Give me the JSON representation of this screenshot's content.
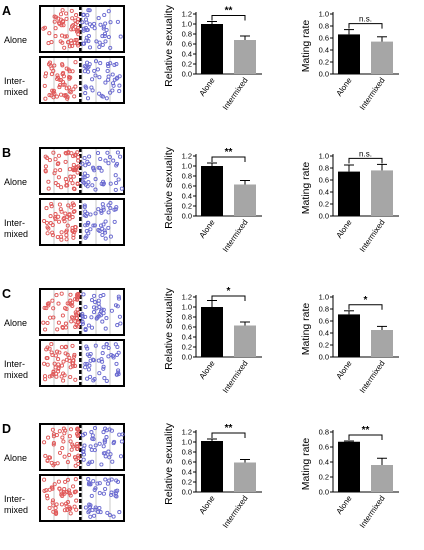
{
  "panel_texts": {
    "row_label_alone": "Alone",
    "row_label_intermixed_1": "Inter-",
    "row_label_intermixed_2": "mixed"
  },
  "colors": {
    "alone_bar": "#000000",
    "intermixed_bar": "#a6a6a6",
    "female_dot": "#e05a5a",
    "male_dot": "#6a6ad0"
  },
  "panels": [
    {
      "letter": "A"
    },
    {
      "letter": "B"
    },
    {
      "letter": "C"
    },
    {
      "letter": "D"
    }
  ],
  "chart_data": [
    {
      "panel": "A",
      "type": "bar",
      "categories": [
        "Alone",
        "Intermixed"
      ],
      "values": [
        1.0,
        0.68
      ],
      "errors": [
        0.05,
        0.08
      ],
      "ylabel": "Relative sexuality",
      "ylim": [
        0,
        1.2
      ],
      "yticks": [
        "0.0",
        "0.2",
        "0.4",
        "0.6",
        "0.8",
        "1.0",
        "1.2"
      ],
      "significance": "**"
    },
    {
      "panel": "A",
      "type": "bar",
      "categories": [
        "Alone",
        "Intermixed"
      ],
      "values": [
        0.66,
        0.54
      ],
      "errors": [
        0.08,
        0.08
      ],
      "ylabel": "Mating rate",
      "ylim": [
        0,
        1.0
      ],
      "yticks": [
        "0.0",
        "0.2",
        "0.4",
        "0.6",
        "0.8",
        "1.0"
      ],
      "significance": "n.s."
    },
    {
      "panel": "B",
      "type": "bar",
      "categories": [
        "Alone",
        "Intermixed"
      ],
      "values": [
        1.0,
        0.63
      ],
      "errors": [
        0.06,
        0.08
      ],
      "ylabel": "Relative sexuality",
      "ylim": [
        0,
        1.2
      ],
      "yticks": [
        "0.0",
        "0.2",
        "0.4",
        "0.6",
        "0.8",
        "1.0",
        "1.2"
      ],
      "significance": "**"
    },
    {
      "panel": "B",
      "type": "bar",
      "categories": [
        "Alone",
        "Intermixed"
      ],
      "values": [
        0.74,
        0.76
      ],
      "errors": [
        0.11,
        0.1
      ],
      "ylabel": "Mating rate",
      "ylim": [
        0,
        1.0
      ],
      "yticks": [
        "0.0",
        "0.2",
        "0.4",
        "0.6",
        "0.8",
        "1.0"
      ],
      "significance": "n.s."
    },
    {
      "panel": "C",
      "type": "bar",
      "categories": [
        "Alone",
        "Intermixed"
      ],
      "values": [
        1.0,
        0.63
      ],
      "errors": [
        0.13,
        0.07
      ],
      "ylabel": "Relative sexuality",
      "ylim": [
        0,
        1.2
      ],
      "yticks": [
        "0.0",
        "0.2",
        "0.4",
        "0.6",
        "0.8",
        "1.0",
        "1.2"
      ],
      "significance": "*"
    },
    {
      "panel": "C",
      "type": "bar",
      "categories": [
        "Alone",
        "Intermixed"
      ],
      "values": [
        0.71,
        0.45
      ],
      "errors": [
        0.06,
        0.06
      ],
      "ylabel": "Mating rate",
      "ylim": [
        0,
        1.0
      ],
      "yticks": [
        "0.0",
        "0.2",
        "0.4",
        "0.6",
        "0.8",
        "1.0"
      ],
      "significance": "*"
    },
    {
      "panel": "D",
      "type": "bar",
      "categories": [
        "Alone",
        "Intermixed"
      ],
      "values": [
        1.02,
        0.59
      ],
      "errors": [
        0.04,
        0.06
      ],
      "ylabel": "Relative sexuality",
      "ylim": [
        0,
        1.2
      ],
      "yticks": [
        "0.0",
        "0.2",
        "0.4",
        "0.6",
        "0.8",
        "1.0",
        "1.2"
      ],
      "significance": "**"
    },
    {
      "panel": "D",
      "type": "bar",
      "categories": [
        "Alone",
        "Intermixed"
      ],
      "values": [
        0.67,
        0.36
      ],
      "errors": [
        0.01,
        0.09
      ],
      "ylabel": "Mating rate",
      "ylim": [
        0,
        0.8
      ],
      "yticks": [
        "0.0",
        "0.2",
        "0.4",
        "0.6",
        "0.8"
      ],
      "significance": "**"
    }
  ]
}
